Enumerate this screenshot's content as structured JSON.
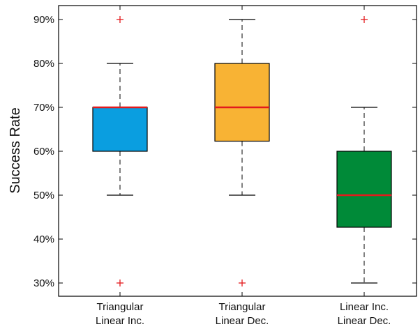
{
  "chart_data": {
    "type": "boxplot",
    "title": "",
    "xlabel": "",
    "ylabel": "Success Rate",
    "ylim": [
      28,
      94
    ],
    "yticks": [
      30,
      40,
      50,
      60,
      70,
      80,
      90
    ],
    "ytick_labels": [
      "30%",
      "40%",
      "50%",
      "60%",
      "70%",
      "80%",
      "90%"
    ],
    "grid": false,
    "legend": "none",
    "boxes": [
      {
        "label_lines": [
          "Triangular",
          "Linear Inc."
        ],
        "whisker_low": 50,
        "q1": 60,
        "median": 70,
        "q3": 70,
        "whisker_high": 80,
        "outliers": [
          90,
          30
        ],
        "color": "#0a9ee0"
      },
      {
        "label_lines": [
          "Triangular",
          "Linear Dec."
        ],
        "whisker_low": 50,
        "q1": 62.3,
        "median": 70,
        "q3": 80,
        "whisker_high": 90,
        "outliers": [
          30
        ],
        "color": "#f8b334"
      },
      {
        "label_lines": [
          "Linear Inc.",
          "Linear Dec."
        ],
        "whisker_low": 30,
        "q1": 42.7,
        "median": 50,
        "q3": 60,
        "whisker_high": 70,
        "outliers": [
          90
        ],
        "color": "#008a38"
      }
    ],
    "median_color": "#e31a1c",
    "outlier_color": "#e31a1c"
  }
}
